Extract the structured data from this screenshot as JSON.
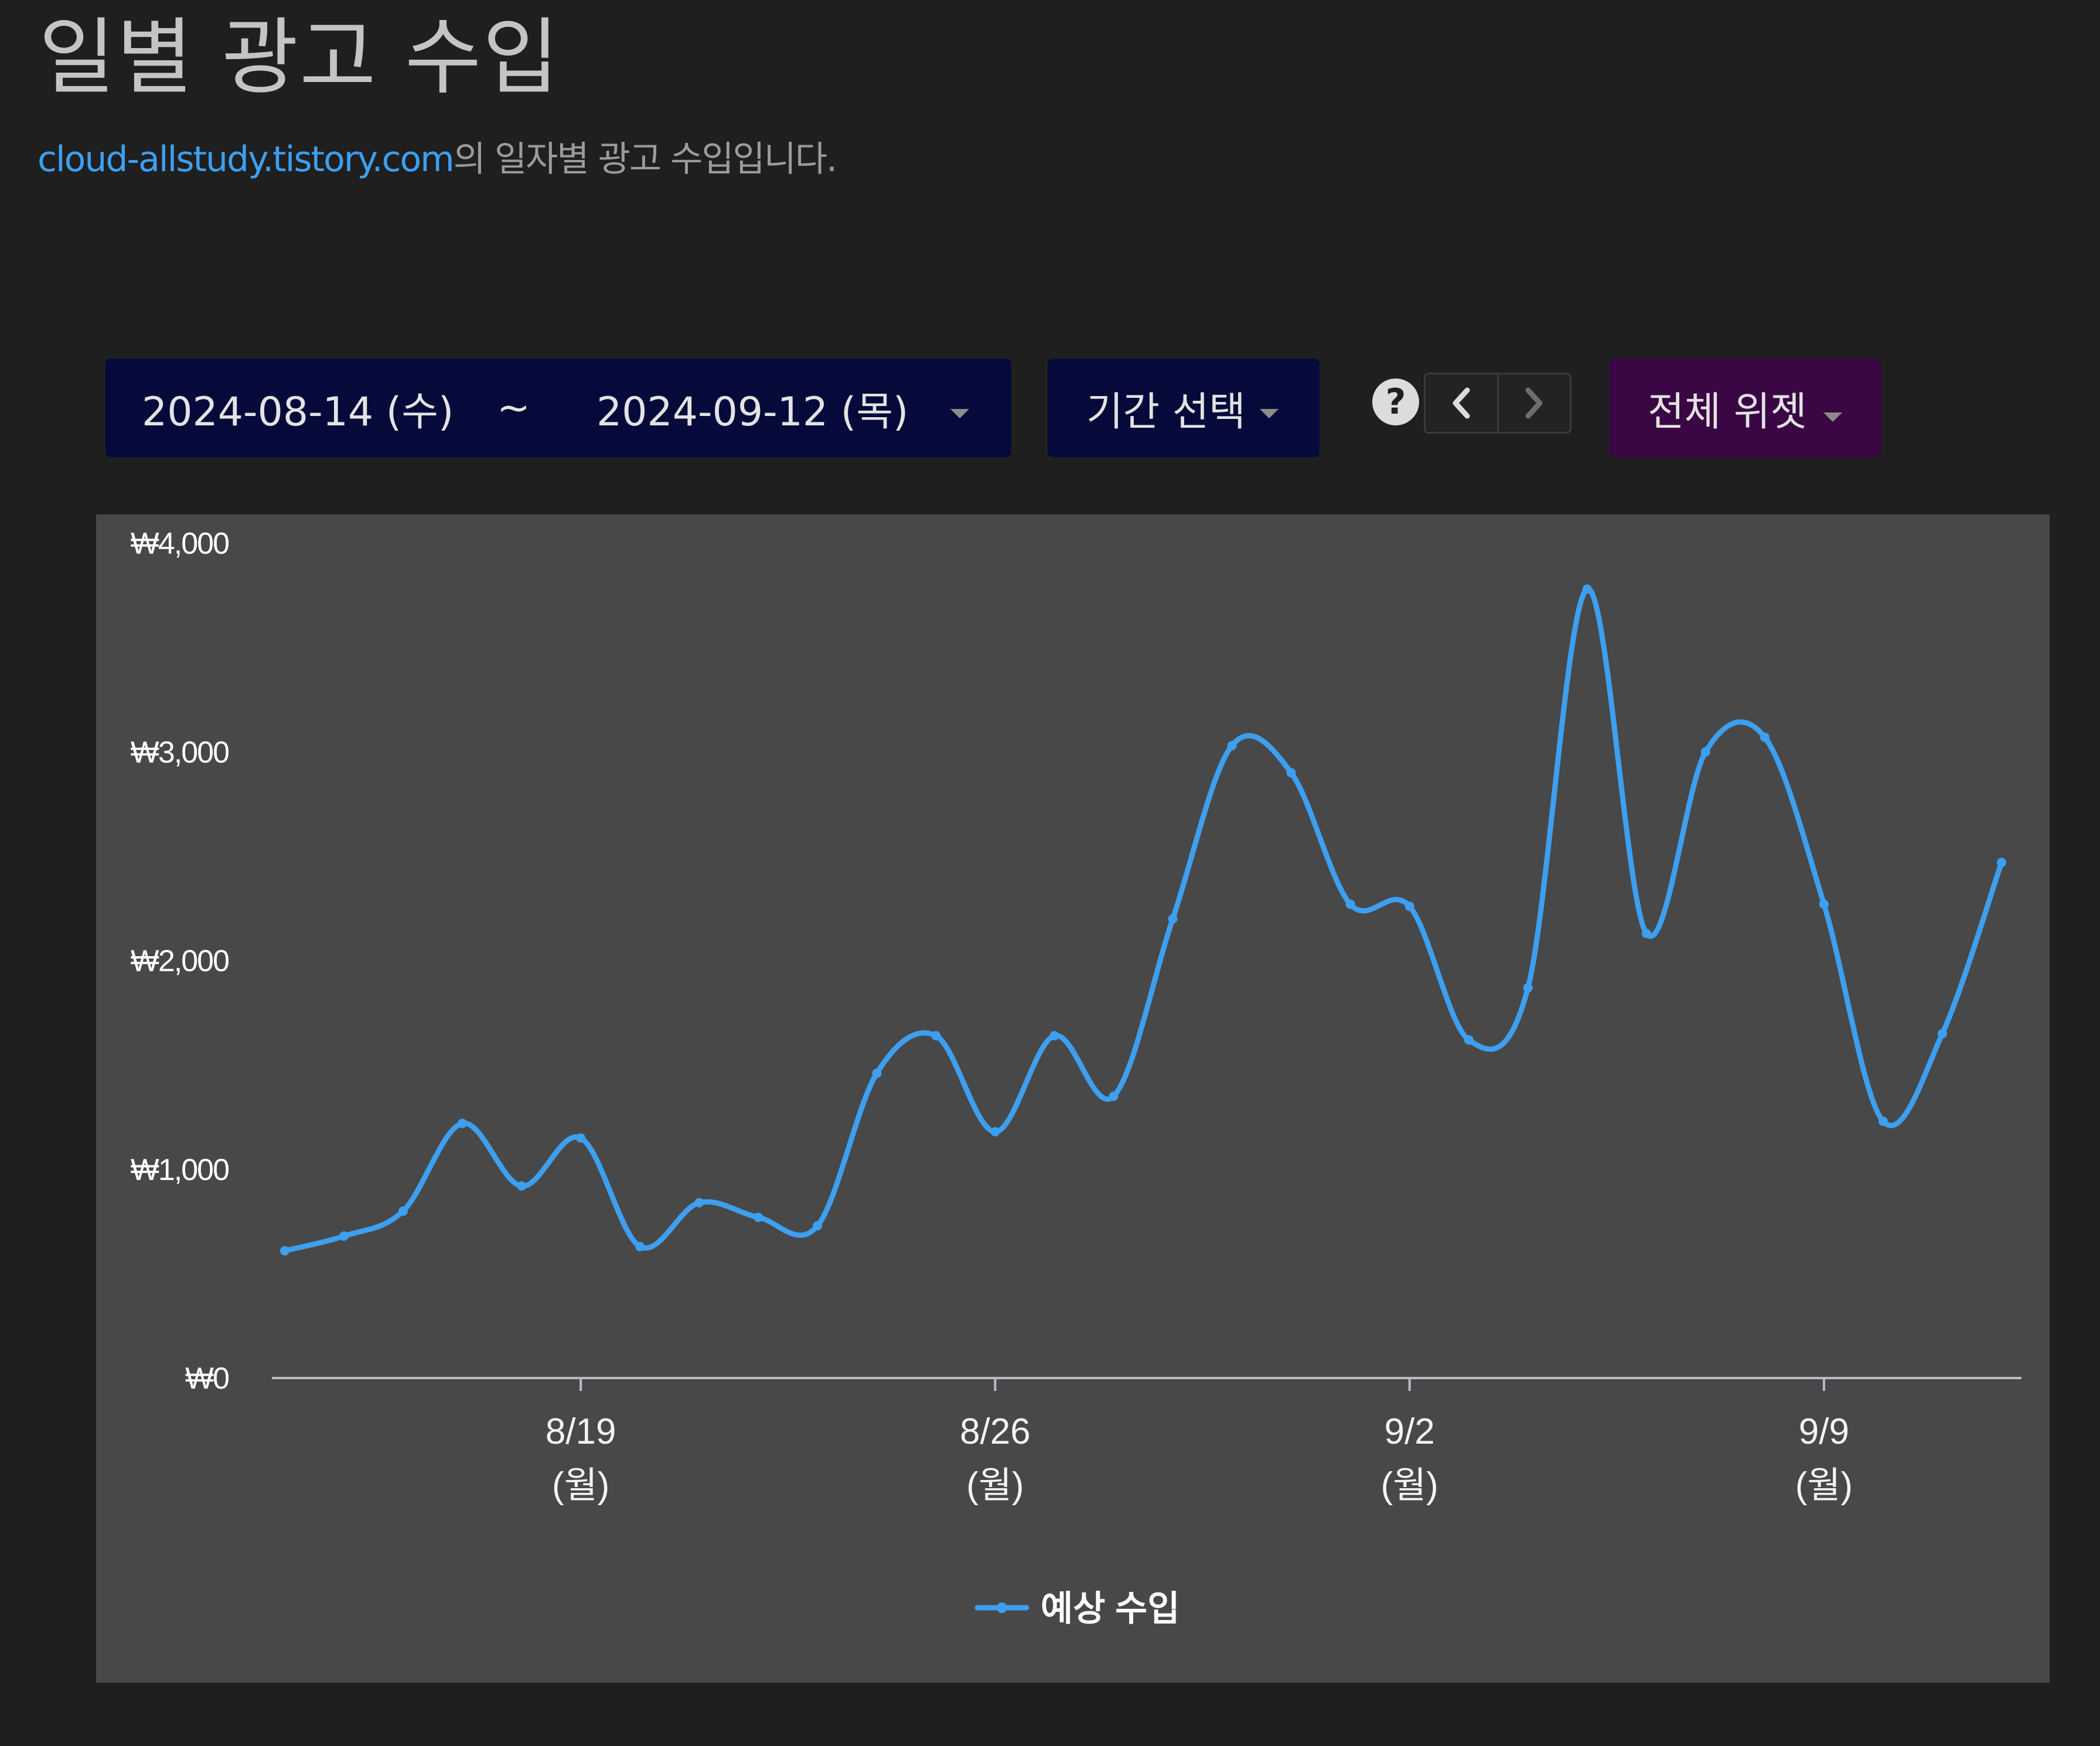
{
  "header": {
    "title": "일별 광고 수입",
    "site": "cloud-allstudy.tistory.com",
    "description_suffix": "의 일자별 광고 수입입니다."
  },
  "toolbar": {
    "start_date": "2024-08-14 (수)",
    "separator": "~",
    "end_date": "2024-09-12 (목)",
    "period_label": "기간 선택",
    "help_symbol": "?",
    "widget_label": "전체 위젯"
  },
  "colors": {
    "background": "#1f1f1f",
    "panel": "#484848",
    "date_button": "#060a3a",
    "widget_button": "#3b0644",
    "series": "#3d9ff0",
    "link": "#3d9ff0"
  },
  "icons": {
    "help": "help-icon",
    "prev": "chevron-left-icon",
    "next": "chevron-right-icon",
    "dropdown": "caret-down-icon"
  },
  "chart_data": {
    "type": "line",
    "x_dates": [
      "8/14",
      "8/15",
      "8/16",
      "8/17",
      "8/18",
      "8/19",
      "8/20",
      "8/21",
      "8/22",
      "8/23",
      "8/24",
      "8/25",
      "8/26",
      "8/27",
      "8/28",
      "8/29",
      "8/30",
      "8/31",
      "9/1",
      "9/2",
      "9/3",
      "9/4",
      "9/5",
      "9/6",
      "9/7",
      "9/8",
      "9/9",
      "9/10",
      "9/11",
      "9/12"
    ],
    "series": [
      {
        "name": "예상 수입",
        "values": [
          610,
          680,
          800,
          1220,
          920,
          1150,
          630,
          840,
          770,
          730,
          1460,
          1640,
          1180,
          1640,
          1350,
          2200,
          3030,
          2900,
          2270,
          2260,
          1620,
          1870,
          3780,
          2130,
          3000,
          3070,
          2270,
          1230,
          1650,
          2470
        ]
      }
    ],
    "x_ticks": [
      {
        "date": "8/19",
        "label": "8/19",
        "sublabel": "(월)"
      },
      {
        "date": "8/26",
        "label": "8/26",
        "sublabel": "(월)"
      },
      {
        "date": "9/2",
        "label": "9/2",
        "sublabel": "(월)"
      },
      {
        "date": "9/9",
        "label": "9/9",
        "sublabel": "(월)"
      }
    ],
    "y_ticks": [
      {
        "value": 0,
        "label": "₩0"
      },
      {
        "value": 1000,
        "label": "₩1,000"
      },
      {
        "value": 2000,
        "label": "₩2,000"
      },
      {
        "value": 3000,
        "label": "₩3,000"
      },
      {
        "value": 4000,
        "label": "₩4,000"
      }
    ],
    "ylim": [
      0,
      4000
    ],
    "grid": false,
    "legend_position": "bottom-center"
  }
}
